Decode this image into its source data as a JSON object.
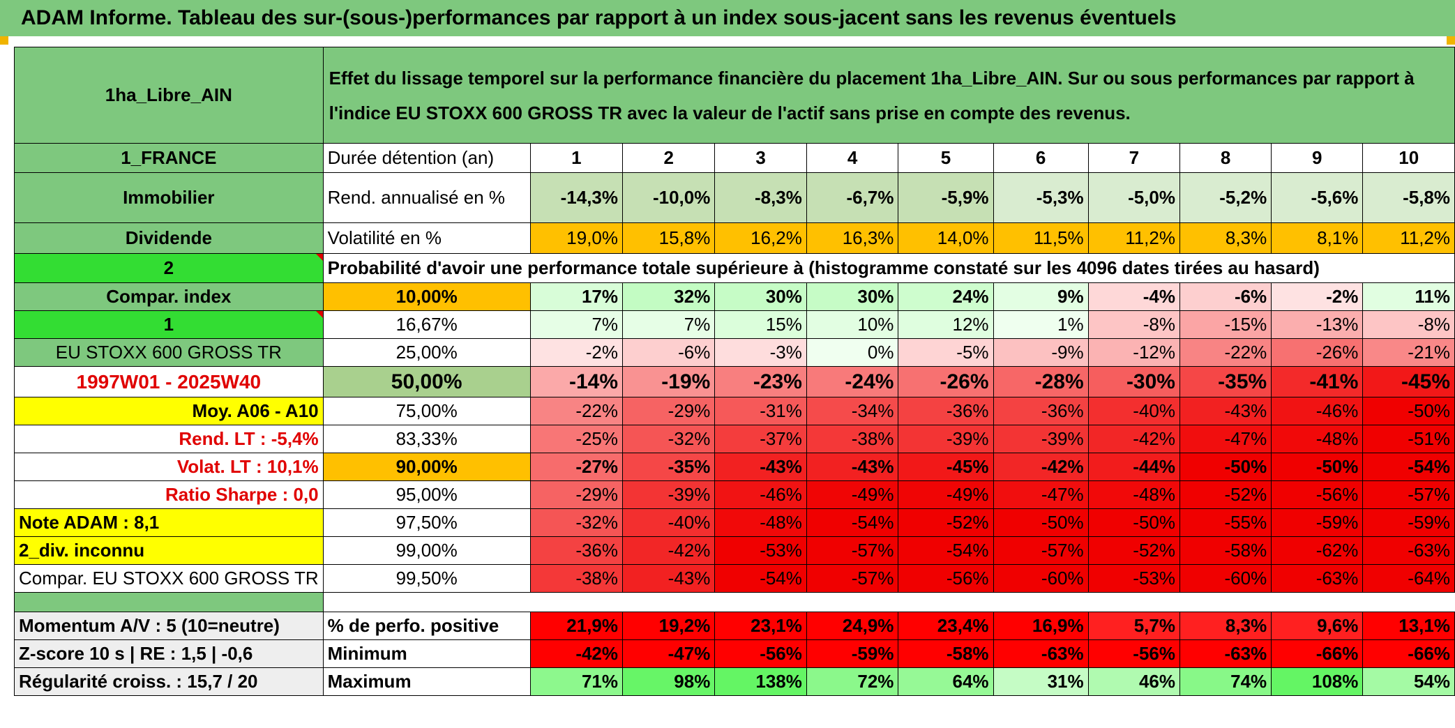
{
  "title": "ADAM Informe. Tableau des sur-(sous-)performances par rapport à un index sous-jacent sans les revenus éventuels",
  "header": {
    "fund_name": "1ha_Libre_AIN",
    "description": "Effet du lissage temporel sur la performance financière du placement 1ha_Libre_AIN. Sur ou sous performances par rapport à l'indice EU STOXX 600 GROSS TR avec la valeur de l'actif sans prise en compte des revenus."
  },
  "left_labels": {
    "country": "1_FRANCE",
    "category": "Immobilier",
    "income": "Dividende",
    "compar_input": "2",
    "compar_index": "Compar. index",
    "index_input": "1",
    "index_name": "EU STOXX 600 GROSS TR",
    "period": "1997W01 - 2025W40",
    "moy": "Moy. A06 - A10",
    "rend_lt": "Rend. LT :    -5,4%",
    "volat_lt": "Volat. LT :    10,1%",
    "sharpe": "Ratio Sharpe :    0,0",
    "note": "Note ADAM : 8,1",
    "div": "2_div. inconnu",
    "compar": "Compar. EU STOXX 600 GROSS TR",
    "momentum": "Momentum A/V : 5 (10=neutre)",
    "zscore": "Z-score 10 s | RE : 1,5 | -0,6",
    "regularite": "Régularité croiss. : 15,7 / 20"
  },
  "row_labels": {
    "duration": "Durée détention (an)",
    "rend": "Rend. annualisé en %",
    "vol": "Volatilité en %",
    "prob": "Probabilité d'avoir une performance totale supérieure à (histogramme constaté sur les 4096 dates tirées au hasard)",
    "positive": "% de perfo. positive",
    "minimum": "Minimum",
    "maximum": "Maximum"
  },
  "years": [
    "1",
    "2",
    "3",
    "4",
    "5",
    "6",
    "7",
    "8",
    "9",
    "10"
  ],
  "rend": [
    "-14,3%",
    "-10,0%",
    "-8,3%",
    "-6,7%",
    "-5,9%",
    "-5,3%",
    "-5,0%",
    "-5,2%",
    "-5,6%",
    "-5,8%"
  ],
  "vol": [
    "19,0%",
    "15,8%",
    "16,2%",
    "16,3%",
    "14,0%",
    "11,5%",
    "11,2%",
    "8,3%",
    "8,1%",
    "11,2%"
  ],
  "vol_colors": [
    "#ffc000",
    "#ffc000",
    "#ffc000",
    "#ffc000",
    "#ffc000",
    "#ffc000",
    "#ffc000",
    "#ffc000",
    "#ffc000",
    "#ffc000"
  ],
  "percentiles": [
    {
      "p": "10,00%",
      "values": [
        "17%",
        "32%",
        "30%",
        "30%",
        "24%",
        "9%",
        "-4%",
        "-6%",
        "-2%",
        "11%"
      ]
    },
    {
      "p": "16,67%",
      "values": [
        "7%",
        "7%",
        "15%",
        "10%",
        "12%",
        "1%",
        "-8%",
        "-15%",
        "-13%",
        "-8%"
      ]
    },
    {
      "p": "25,00%",
      "values": [
        "-2%",
        "-6%",
        "-3%",
        "0%",
        "-5%",
        "-9%",
        "-12%",
        "-22%",
        "-26%",
        "-21%"
      ]
    },
    {
      "p": "50,00%",
      "values": [
        "-14%",
        "-19%",
        "-23%",
        "-24%",
        "-26%",
        "-28%",
        "-30%",
        "-35%",
        "-41%",
        "-45%"
      ]
    },
    {
      "p": "75,00%",
      "values": [
        "-22%",
        "-29%",
        "-31%",
        "-34%",
        "-36%",
        "-36%",
        "-40%",
        "-43%",
        "-46%",
        "-50%"
      ]
    },
    {
      "p": "83,33%",
      "values": [
        "-25%",
        "-32%",
        "-37%",
        "-38%",
        "-39%",
        "-39%",
        "-42%",
        "-47%",
        "-48%",
        "-51%"
      ]
    },
    {
      "p": "90,00%",
      "values": [
        "-27%",
        "-35%",
        "-43%",
        "-43%",
        "-45%",
        "-42%",
        "-44%",
        "-50%",
        "-50%",
        "-54%"
      ]
    },
    {
      "p": "95,00%",
      "values": [
        "-29%",
        "-39%",
        "-46%",
        "-49%",
        "-49%",
        "-47%",
        "-48%",
        "-52%",
        "-56%",
        "-57%"
      ]
    },
    {
      "p": "97,50%",
      "values": [
        "-32%",
        "-40%",
        "-48%",
        "-54%",
        "-52%",
        "-50%",
        "-50%",
        "-55%",
        "-59%",
        "-59%"
      ]
    },
    {
      "p": "99,00%",
      "values": [
        "-36%",
        "-42%",
        "-53%",
        "-57%",
        "-54%",
        "-57%",
        "-52%",
        "-58%",
        "-62%",
        "-63%"
      ]
    },
    {
      "p": "99,50%",
      "values": [
        "-38%",
        "-43%",
        "-54%",
        "-57%",
        "-56%",
        "-60%",
        "-53%",
        "-60%",
        "-63%",
        "-64%"
      ]
    }
  ],
  "positive": [
    "21,9%",
    "19,2%",
    "23,1%",
    "24,9%",
    "23,4%",
    "16,9%",
    "5,7%",
    "8,3%",
    "9,6%",
    "13,1%"
  ],
  "minimum": [
    "-42%",
    "-47%",
    "-56%",
    "-59%",
    "-58%",
    "-63%",
    "-56%",
    "-63%",
    "-66%",
    "-66%"
  ],
  "maximum": [
    "71%",
    "98%",
    "138%",
    "72%",
    "64%",
    "31%",
    "46%",
    "74%",
    "108%",
    "54%"
  ]
}
